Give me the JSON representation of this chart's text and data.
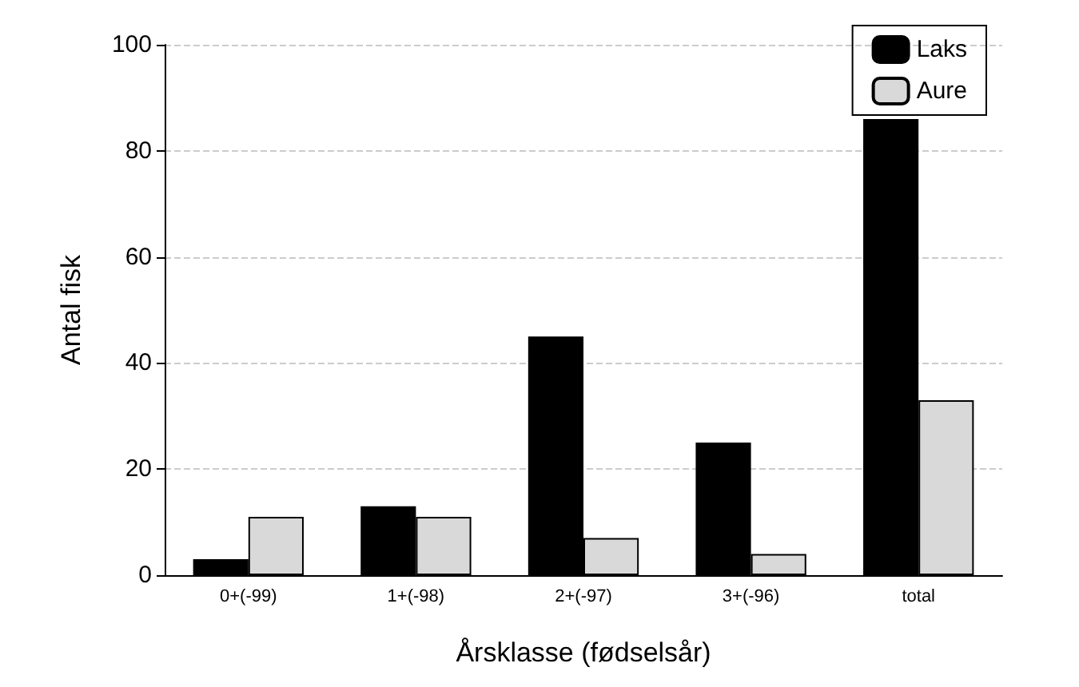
{
  "chart_data": {
    "type": "bar",
    "xlabel": "Årsklasse (fødselsår)",
    "ylabel": "Antal fisk",
    "categories": [
      "0+(-99)",
      "1+(-98)",
      "2+(-97)",
      "3+(-96)",
      "total"
    ],
    "series": [
      {
        "name": "Laks",
        "color": "#000000",
        "values": [
          3,
          13,
          45,
          25,
          86
        ]
      },
      {
        "name": "Aure",
        "color": "#d9d9d9",
        "values": [
          11,
          11,
          7,
          4,
          33
        ]
      }
    ],
    "ylim": [
      0,
      100
    ],
    "yticks": [
      0,
      20,
      40,
      60,
      80,
      100
    ],
    "grid": "y",
    "legend": "top right"
  }
}
